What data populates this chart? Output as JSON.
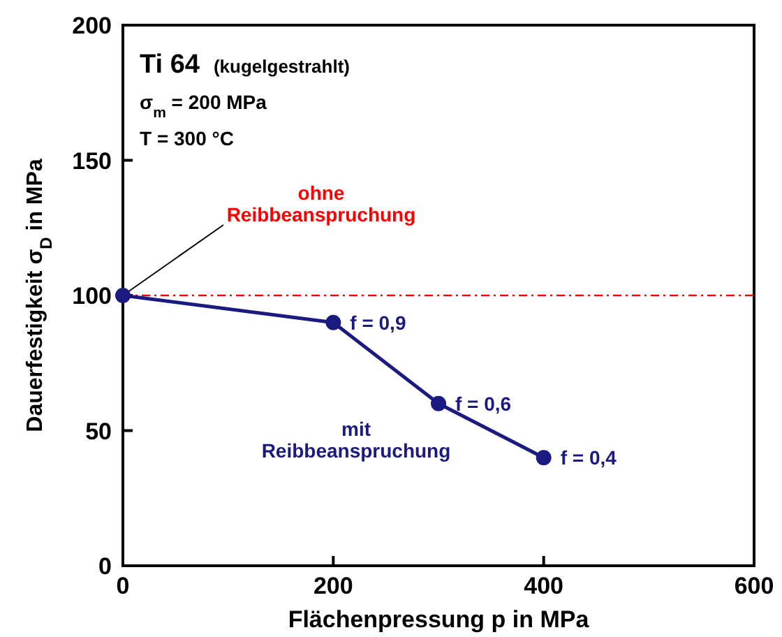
{
  "chart_data": {
    "type": "line",
    "title": "Ti 64",
    "subtitle": "(kugelgestrahlt)",
    "xlabel": "Flächenpressung p  in  MPa",
    "ylabel": "Dauerfestigkeit  σ$_{D}$  in  MPa",
    "x": [
      0,
      200,
      300,
      400
    ],
    "series": [
      {
        "color": "#1a1a80",
        "values": [
          100,
          90,
          60,
          40
        ]
      }
    ],
    "marker": "circle",
    "line_style": "solid",
    "grid": false,
    "xlim": [
      0,
      600
    ],
    "xticks": [
      0,
      200,
      400,
      600
    ],
    "ylim": [
      0,
      200
    ],
    "yticks": [
      0,
      50,
      100,
      150,
      200
    ],
    "ref_lines": [
      {
        "axis": "y",
        "value": 100,
        "label": "ohne Reibbeanspruchung",
        "color": "#ff0000",
        "line_style": "dashdot"
      }
    ],
    "annotations": [
      "σ$_{m}$ = 200 MPa",
      "T  = 300 °C",
      "mit Reibbeanspruchung",
      {
        "text": "f = 0,9",
        "x": 200,
        "y": 90
      },
      {
        "text": "f = 0,6",
        "x": 300,
        "y": 60
      },
      {
        "text": "f = 0,4",
        "x": 400,
        "y": 40
      }
    ]
  }
}
